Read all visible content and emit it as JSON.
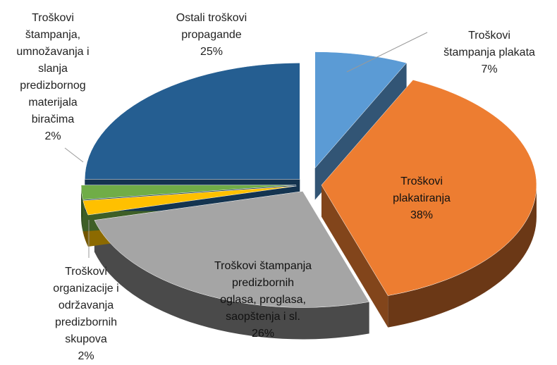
{
  "chart_data": {
    "type": "pie",
    "categories": [
      "Troškovi štampanja plakata",
      "Troškovi plakatiranja",
      "Troškovi štampanja predizbornih oglasa, proglasa, saopštenja i sl.",
      "Troškovi organizacije i održavanja predizbornih skupova",
      "Troškovi štampanja, umnožavanja i slanja predizbornog materijala biračima",
      "Ostali troškovi propagande"
    ],
    "values": [
      7,
      38,
      26,
      2,
      2,
      25
    ],
    "value_labels": [
      "7%",
      "38%",
      "26%",
      "2%",
      "2%",
      "25%"
    ],
    "colors": [
      "#5b9bd5",
      "#ed7d31",
      "#a5a5a5",
      "#ffc000",
      "#70ad47",
      "#255e91"
    ],
    "three_d": true,
    "exploded": true
  }
}
